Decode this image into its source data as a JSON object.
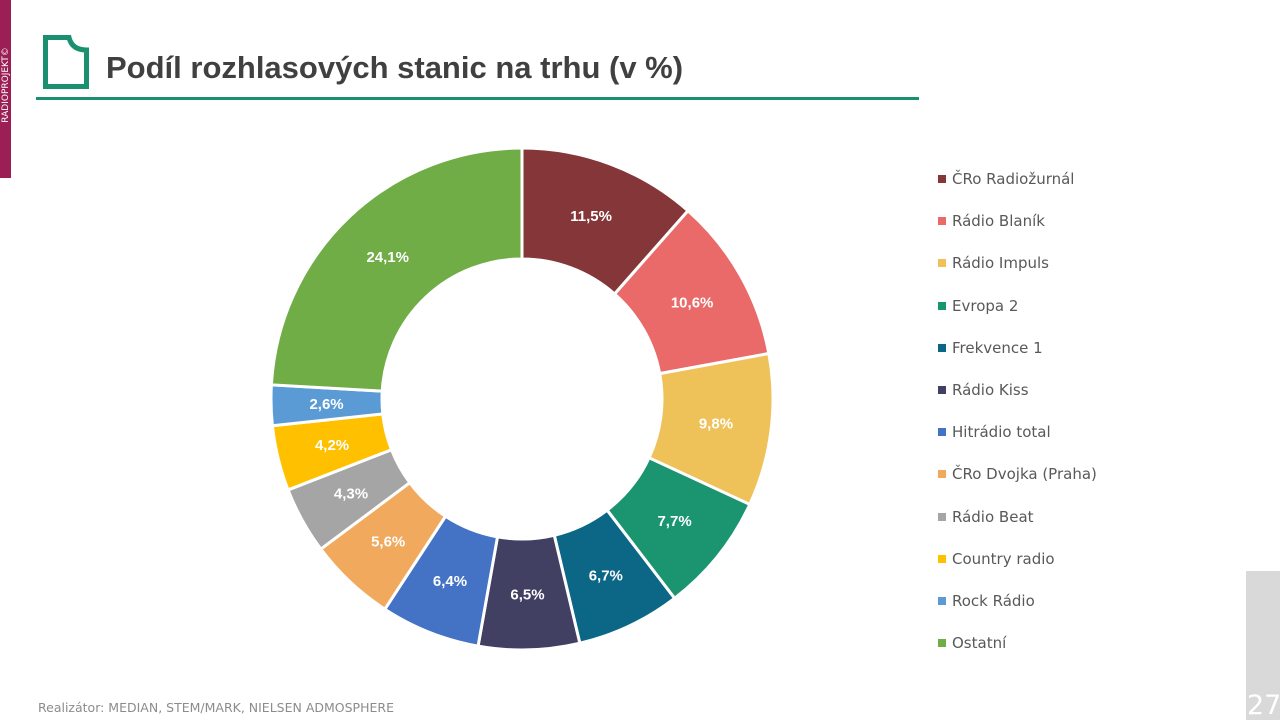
{
  "brand": {
    "sidebar_text": "RADIOPROJEKT©"
  },
  "header": {
    "title": "Podíl rozhlasových stanic na trhu (v %)"
  },
  "footer": {
    "source": "Realizátor: MEDIAN, STEM/MARK, NIELSEN ADMOSPHERE",
    "page_number": "27"
  },
  "chart_data": {
    "type": "donut",
    "title": "",
    "legend_position": "right",
    "unit": "%",
    "categories": [
      "ČRo Radiožurnál",
      "Rádio Blaník",
      "Rádio Impuls",
      "Evropa 2",
      "Frekvence 1",
      "Rádio Kiss",
      "Hitrádio total",
      "ČRo Dvojka (Praha)",
      "Rádio Beat",
      "Country radio",
      "Rock Rádio",
      "Ostatní"
    ],
    "values": [
      11.5,
      10.6,
      9.8,
      7.7,
      6.7,
      6.5,
      6.4,
      5.6,
      4.3,
      4.2,
      2.6,
      24.1
    ],
    "labels": [
      "11,5%",
      "10,6%",
      "9,8%",
      "7,7%",
      "6,7%",
      "6,5%",
      "6,4%",
      "5,6%",
      "4,3%",
      "4,2%",
      "2,6%",
      "24,1%"
    ],
    "colors": [
      "#843638",
      "#e96a69",
      "#efc259",
      "#1b9470",
      "#0c6685",
      "#413f62",
      "#4472c4",
      "#f0a95d",
      "#a5a5a5",
      "#ffc000",
      "#5b9bd5",
      "#70ad47"
    ]
  }
}
